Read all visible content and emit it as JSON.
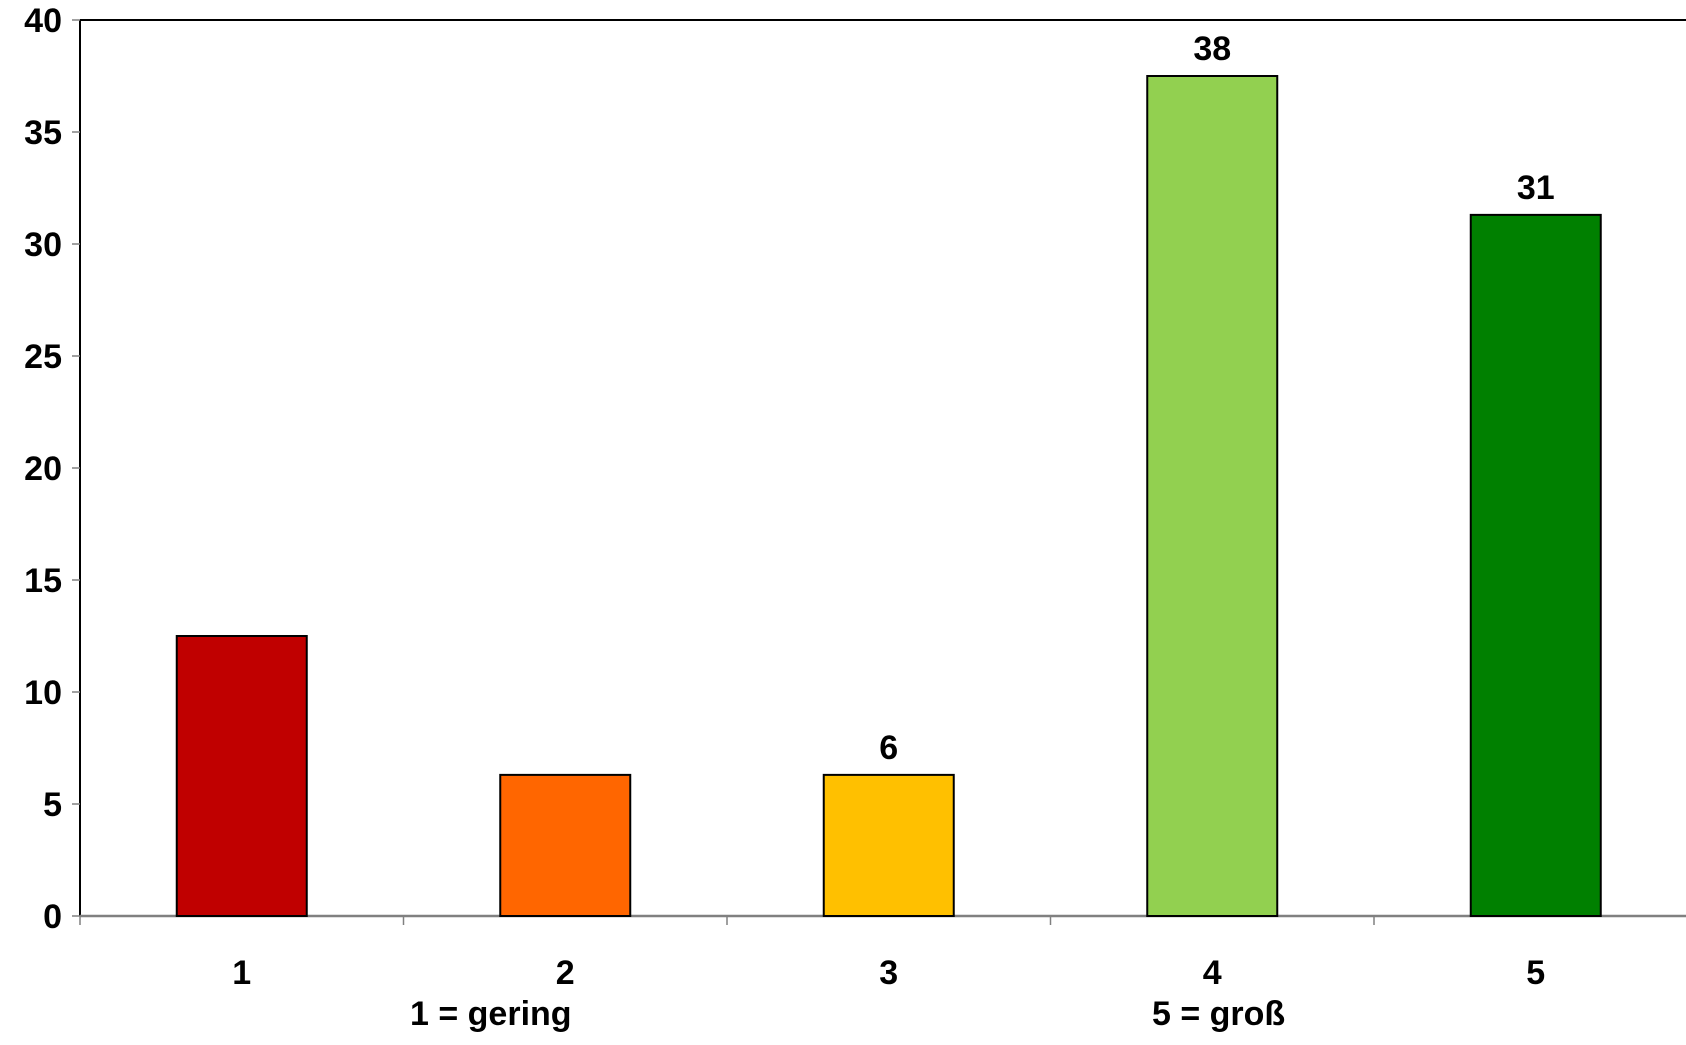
{
  "chart_data": {
    "type": "bar",
    "categories": [
      "1",
      "2",
      "3",
      "4",
      "5"
    ],
    "values": [
      12.5,
      6.3,
      6.3,
      37.5,
      31.3
    ],
    "data_labels": [
      "",
      "",
      "6",
      "38",
      "31"
    ],
    "colors": [
      "#c00000",
      "#ff6600",
      "#ffc000",
      "#92d050",
      "#008000"
    ],
    "ylim": [
      0,
      40
    ],
    "yticks": [
      0,
      5,
      10,
      15,
      20,
      25,
      30,
      35,
      40
    ],
    "grid": false,
    "legend": "none",
    "annotations": [
      "1 = gering",
      "5 = groß"
    ]
  }
}
